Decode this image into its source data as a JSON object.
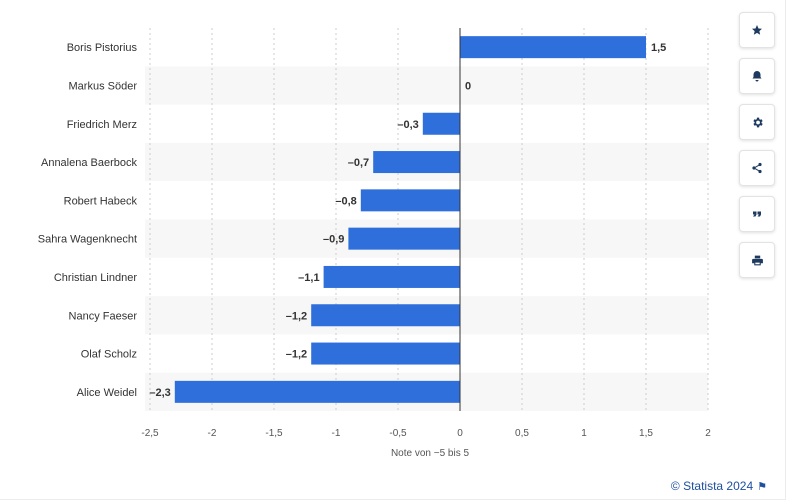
{
  "chart_data": {
    "type": "bar",
    "orientation": "horizontal",
    "categories": [
      "Boris Pistorius",
      "Markus Söder",
      "Friedrich Merz",
      "Annalena Baerbock",
      "Robert Habeck",
      "Sahra Wagenknecht",
      "Christian Lindner",
      "Nancy Faeser",
      "Olaf Scholz",
      "Alice Weidel"
    ],
    "values": [
      1.5,
      0,
      -0.3,
      -0.7,
      -0.8,
      -0.9,
      -1.1,
      -1.2,
      -1.2,
      -2.3
    ],
    "value_labels": [
      "1,5",
      "0",
      "–0,3",
      "–0,7",
      "–0,8",
      "–0,9",
      "–1,1",
      "–1,2",
      "–1,2",
      "–2,3"
    ],
    "xlabel": "Note von −5 bis 5",
    "xlim": [
      -2.5,
      2
    ],
    "xticks": [
      -2.5,
      -2,
      -1.5,
      -1,
      -0.5,
      0,
      0.5,
      1,
      1.5,
      2
    ],
    "xtick_labels": [
      "-2,5",
      "-2",
      "-1,5",
      "-1",
      "-0,5",
      "0",
      "0,5",
      "1",
      "1,5",
      "2"
    ],
    "grid": true,
    "colors": {
      "bar": "#2f6fdc",
      "alt_row": "#f7f7f7",
      "grid": "#cccccc",
      "zero_line": "#333333"
    }
  },
  "toolbar": {
    "buttons": [
      {
        "name": "favorite-button",
        "icon": "star-icon"
      },
      {
        "name": "notification-button",
        "icon": "bell-icon"
      },
      {
        "name": "settings-button",
        "icon": "gear-icon"
      },
      {
        "name": "share-button",
        "icon": "share-icon"
      },
      {
        "name": "cite-button",
        "icon": "quote-icon"
      },
      {
        "name": "print-button",
        "icon": "print-icon"
      }
    ]
  },
  "credit": {
    "text": "© Statista 2024",
    "icon": "flag-icon"
  }
}
